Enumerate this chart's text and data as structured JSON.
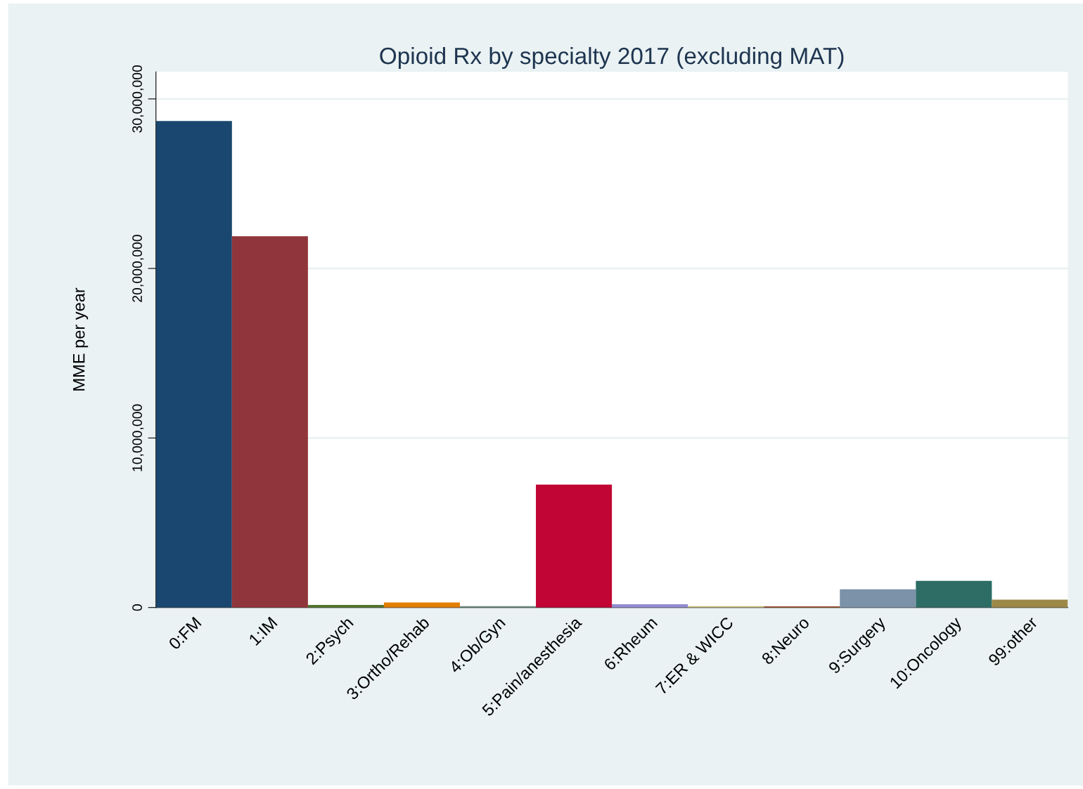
{
  "chart_data": {
    "type": "bar",
    "title": "Opioid Rx by specialty 2017 (excluding MAT)",
    "ylabel": "MME per year",
    "categories": [
      "0:FM",
      "1:IM",
      "2:Psych",
      "3:Ortho/Rehab",
      "4:Ob/Gyn",
      "5:Pain/anesthesia",
      "6:Rheum",
      "7:ER & WICC",
      "8:Neuro",
      "9:Surgery",
      "10:Oncology",
      "99:other"
    ],
    "values": [
      28700000,
      21900000,
      150000,
      300000,
      80000,
      7250000,
      200000,
      80000,
      70000,
      1080000,
      1570000,
      460000
    ],
    "colors": [
      "#1a476f",
      "#90353b",
      "#55752f",
      "#e37e00",
      "#6e8e84",
      "#c10534",
      "#938dd2",
      "#cac27e",
      "#a0522d",
      "#7b92a8",
      "#2d6d66",
      "#9c8847"
    ],
    "ylim": [
      0,
      31600000
    ],
    "yticks": [
      0,
      {
        "value": 10000000,
        "label": "10,000,000"
      },
      {
        "value": 20000000,
        "label": "20,000,000"
      },
      {
        "value": 30000000,
        "label": "30,000,000"
      }
    ],
    "grid": "y"
  }
}
